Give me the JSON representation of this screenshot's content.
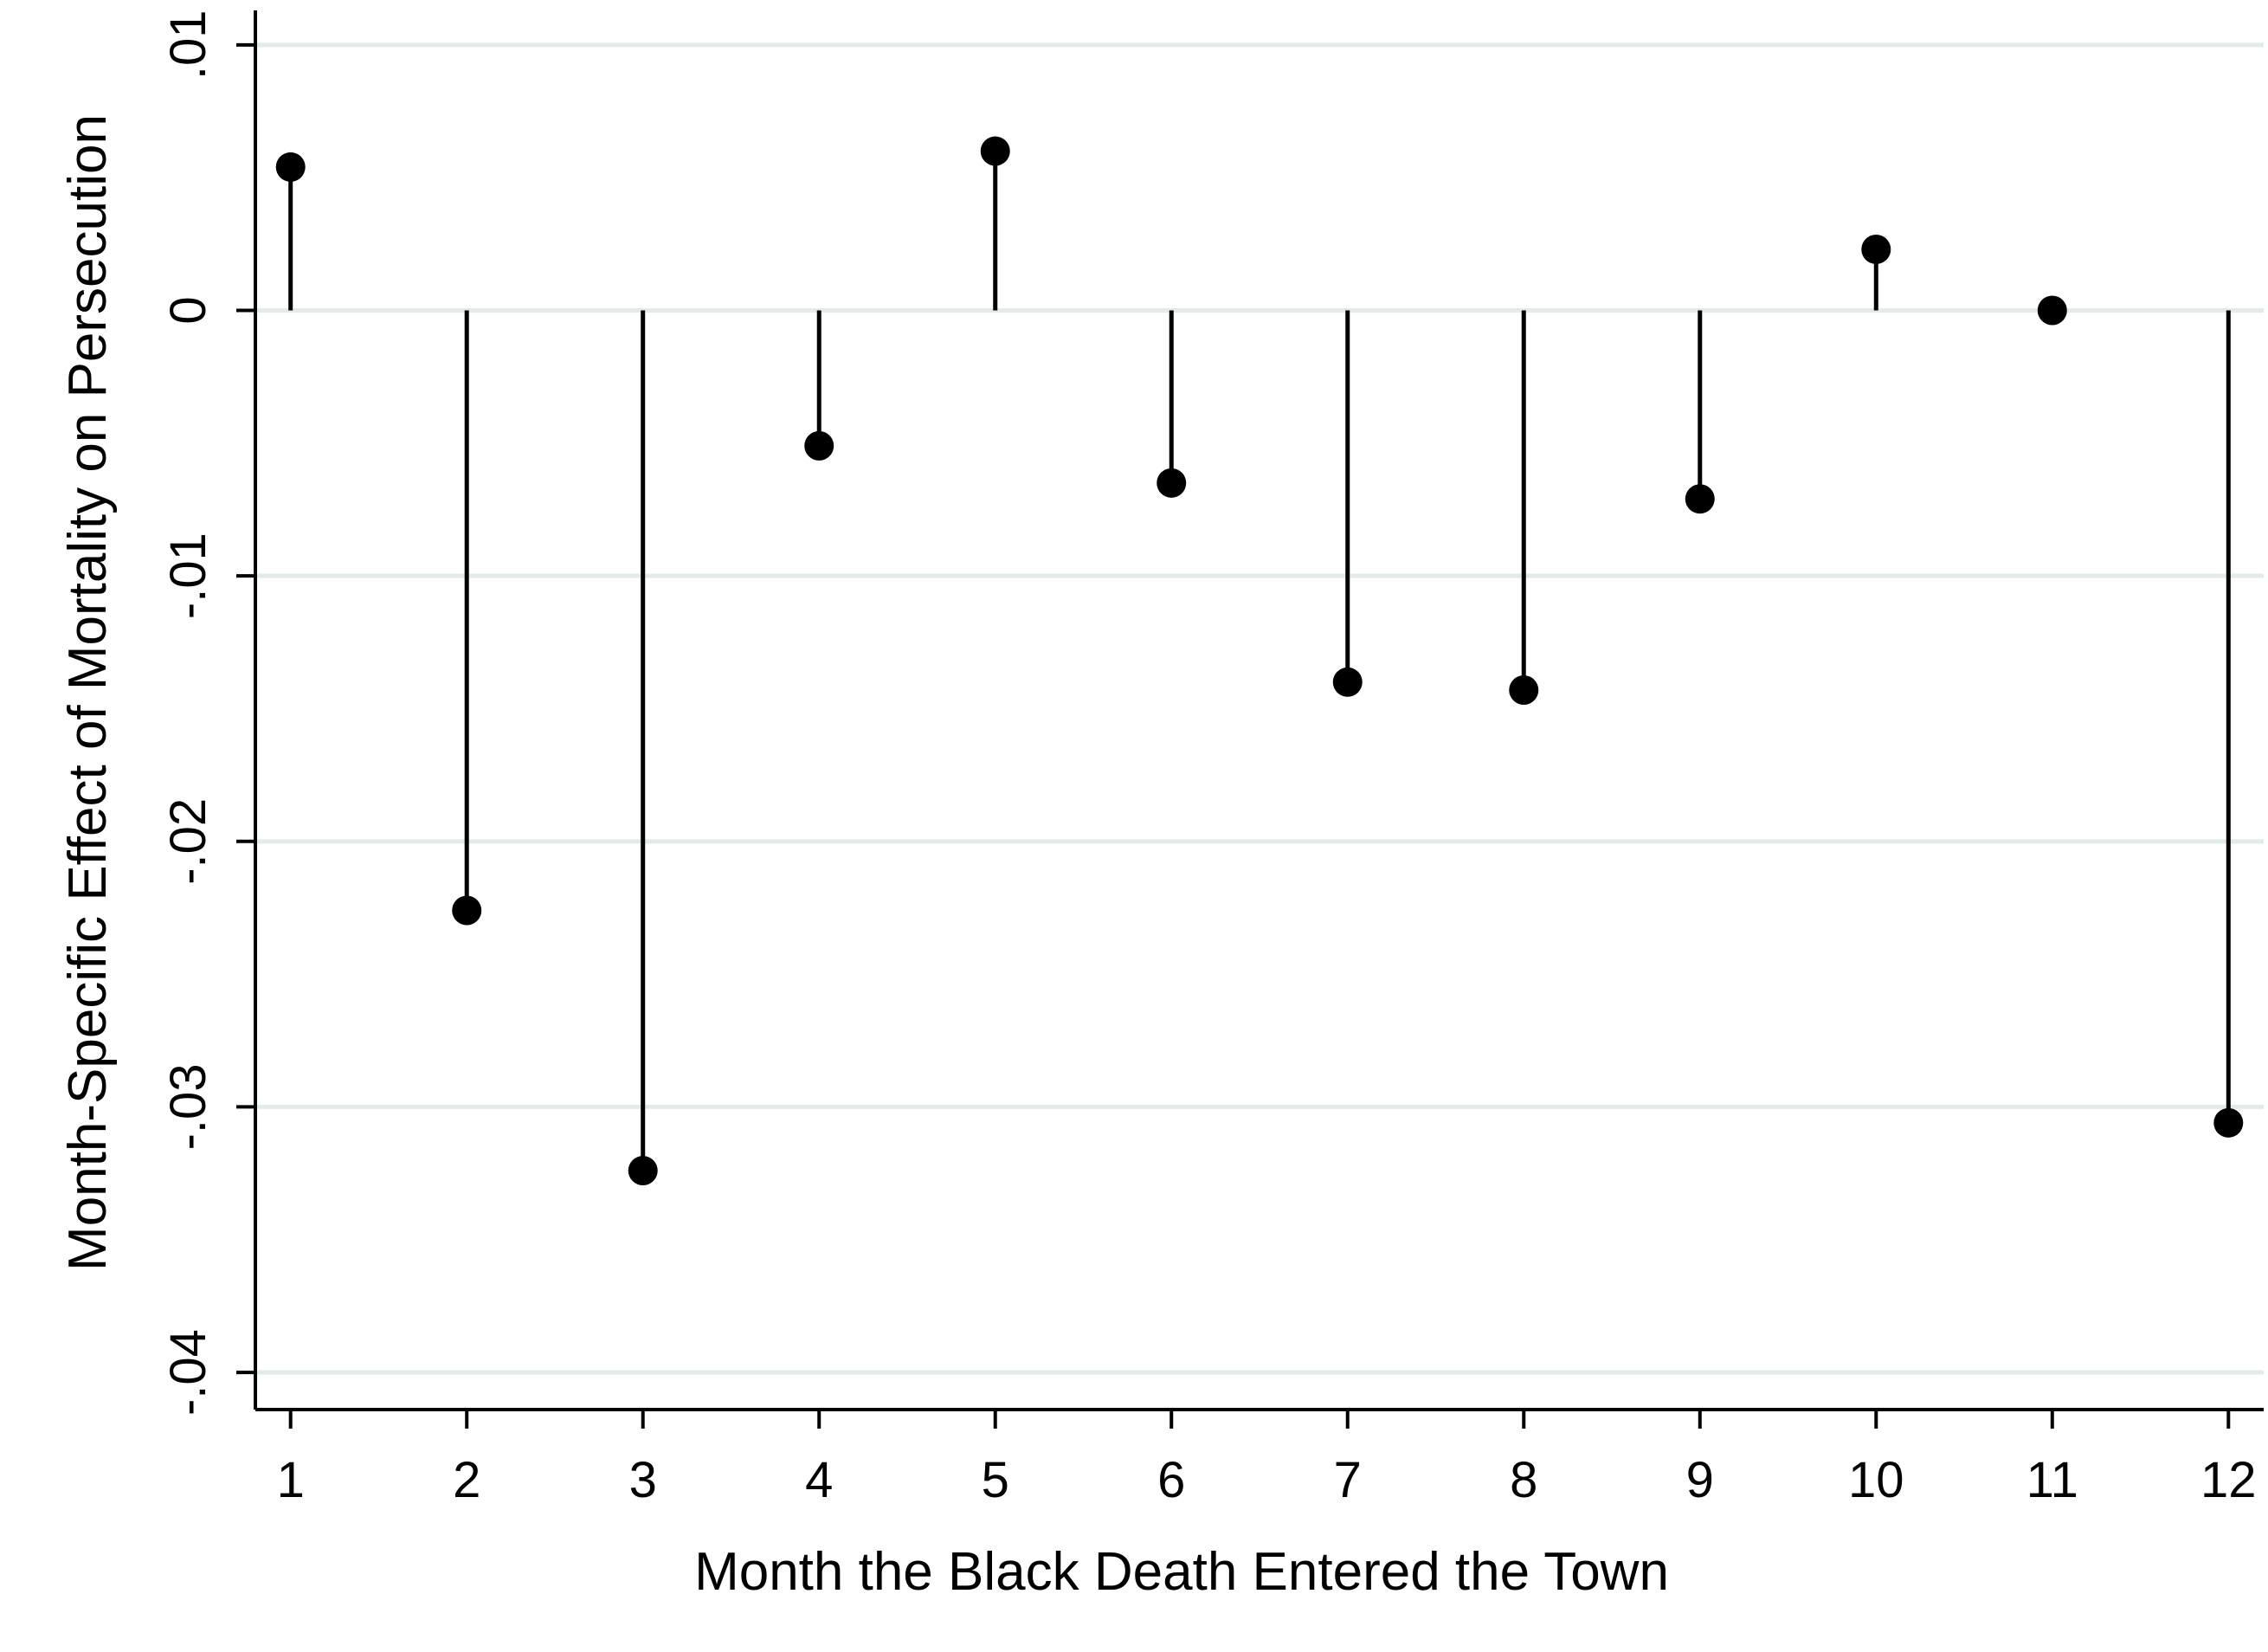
{
  "chart_data": {
    "type": "scatter",
    "style": "dropline",
    "xlabel": "Month the Black Death Entered the Town",
    "ylabel": "Month-Specific Effect of Mortality on Persecution",
    "x": [
      1,
      2,
      3,
      4,
      5,
      6,
      7,
      8,
      9,
      10,
      11,
      12
    ],
    "y": [
      0.0054,
      -0.0226,
      -0.0324,
      -0.0051,
      0.006,
      -0.0065,
      -0.014,
      -0.0143,
      -0.0071,
      0.0023,
      0.0,
      -0.0306
    ],
    "xlim": [
      0.8,
      12.2
    ],
    "ylim": [
      -0.0414,
      0.0113
    ],
    "x_ticks": [
      1,
      2,
      3,
      4,
      5,
      6,
      7,
      8,
      9,
      10,
      11,
      12
    ],
    "x_tick_labels": [
      "1",
      "2",
      "3",
      "4",
      "5",
      "6",
      "7",
      "8",
      "9",
      "10",
      "11",
      "12"
    ],
    "y_ticks": [
      -0.04,
      -0.03,
      -0.02,
      -0.01,
      0,
      0.01
    ],
    "y_tick_labels": [
      "-.04",
      "-.03",
      "-.02",
      "-.01",
      "0",
      ".01"
    ],
    "baseline": 0,
    "grid": "horizontal",
    "colors": {
      "marker": "#000000",
      "grid": "#e3ebea",
      "axis": "#000000"
    }
  }
}
